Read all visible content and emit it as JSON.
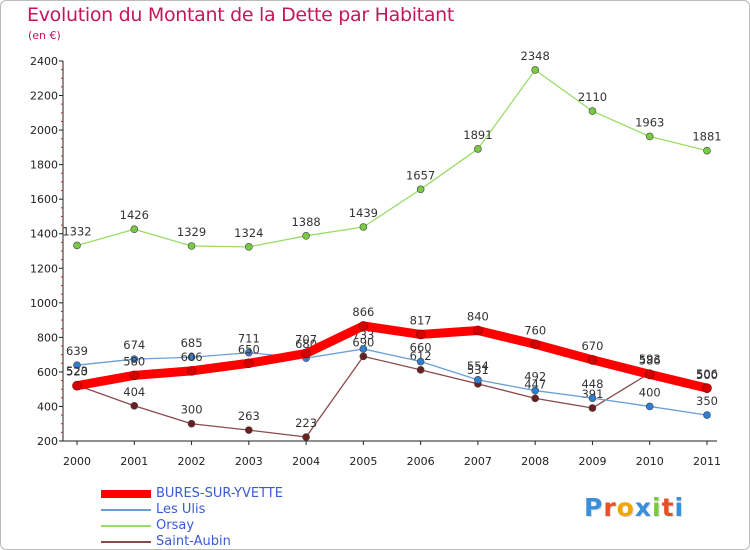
{
  "chart_data": {
    "type": "line",
    "title": "Evolution du Montant de la Dette par Habitant",
    "subtitle": "(en €)",
    "xlabel": "",
    "ylabel": "",
    "x": [
      "2000",
      "2001",
      "2002",
      "2003",
      "2004",
      "2005",
      "2006",
      "2007",
      "2008",
      "2009",
      "2010",
      "2011"
    ],
    "ylim": [
      200,
      2400
    ],
    "yticks": [
      200,
      400,
      600,
      800,
      1000,
      1200,
      1400,
      1600,
      1800,
      2000,
      2200,
      2400
    ],
    "grid": false,
    "legend_position": "bottom-left",
    "series": [
      {
        "name": "BURES-SUR-YVETTE",
        "color": "#ff0000",
        "marker_color": "#d40000",
        "values": [
          520,
          580,
          606,
          650,
          707,
          866,
          817,
          840,
          760,
          670,
          586,
          506
        ]
      },
      {
        "name": "Les Ulis",
        "color": "#6a9fd4",
        "marker_color": "#2f7fd1",
        "values": [
          639,
          674,
          685,
          711,
          680,
          733,
          660,
          554,
          492,
          448,
          400,
          350
        ]
      },
      {
        "name": "Orsay",
        "color": "#99dd66",
        "marker_color": "#7ac943",
        "values": [
          1332,
          1426,
          1329,
          1324,
          1388,
          1439,
          1657,
          1891,
          2348,
          2110,
          1963,
          1881
        ]
      },
      {
        "name": "Saint-Aubin",
        "color": "#8b4a4a",
        "marker_color": "#6b1f1f",
        "values": [
          523,
          404,
          300,
          263,
          223,
          690,
          612,
          531,
          447,
          391,
          593,
          500
        ]
      }
    ]
  },
  "logo": {
    "text": "Proxiti",
    "letter_colors": [
      "#3a8fd9",
      "#e8502a",
      "#f0a500",
      "#3a8fd9",
      "#7ac943",
      "#e8502a",
      "#3a8fd9"
    ]
  }
}
